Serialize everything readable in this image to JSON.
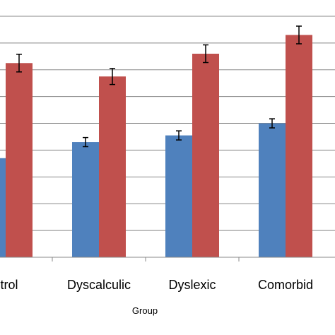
{
  "chart_data": {
    "type": "bar",
    "title": "",
    "xlabel": "Group",
    "ylabel": "",
    "categories": [
      "Control",
      "Dyscalculic",
      "Dyslexic",
      "Comorbid"
    ],
    "visible_category_labels": [
      "ntrol",
      "Dyscalculic",
      "Dyslexic",
      "Comorbid"
    ],
    "ylim": [
      0,
      9.5
    ],
    "grid": true,
    "legend": "none",
    "error_bars": true,
    "series": [
      {
        "color": "#4F81BD",
        "values": [
          3.7,
          4.3,
          4.55,
          5.0
        ],
        "errors": [
          0.17,
          0.17,
          0.17,
          0.17
        ]
      },
      {
        "color": "#C0504D",
        "values": [
          7.25,
          6.75,
          7.6,
          8.3
        ],
        "errors": [
          0.33,
          0.3,
          0.33,
          0.33
        ]
      }
    ]
  }
}
